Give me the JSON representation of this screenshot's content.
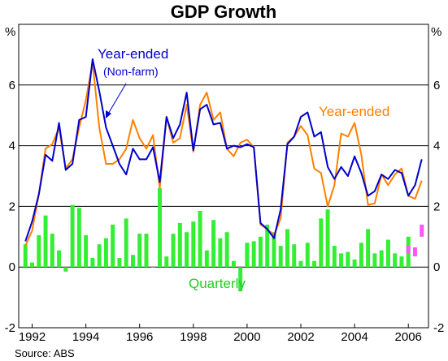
{
  "chart_data": {
    "type": "bar+line",
    "title": "GDP Growth",
    "source": "Source: ABS",
    "unit_left": "%",
    "unit_right": "%",
    "ylim": [
      -2,
      8
    ],
    "y_ticks": [
      "-2",
      "0",
      "2",
      "4",
      "6"
    ],
    "x_ticks": [
      "1992",
      "1994",
      "1996",
      "1998",
      "2000",
      "2002",
      "2004",
      "2006"
    ],
    "x_range": [
      1991.5,
      2006.75
    ],
    "grid": "horizontal",
    "annotations": {
      "blue_label": "Year-ended",
      "blue_sub": "(Non-farm)",
      "orange_label": "Year-ended",
      "green_label": "Quarterly"
    },
    "colors": {
      "quarterly": "#33ee33",
      "farm_contribution": "#ff55ff",
      "year_ended_nonfarm": "#0000cc",
      "year_ended": "#ff8000",
      "grid": "#000000"
    },
    "series": [
      {
        "name": "Quarterly",
        "type": "bar",
        "start": 1991.75,
        "step": 0.25,
        "values": [
          0.75,
          0.15,
          1.05,
          1.7,
          1.1,
          0.55,
          -0.15,
          2.05,
          1.95,
          1.05,
          0.3,
          0.75,
          0.95,
          1.4,
          0.3,
          1.6,
          0.4,
          1.1,
          1.1,
          0.0,
          2.6,
          0.35,
          1.1,
          1.45,
          1.15,
          1.5,
          1.85,
          0.55,
          1.55,
          0.95,
          1.15,
          0.2,
          -0.8,
          0.8,
          0.85,
          1.0,
          1.4,
          1.15,
          0.7,
          1.25,
          0.75,
          0.2,
          0.8,
          0.2,
          1.6,
          1.9,
          0.7,
          0.45,
          0.5,
          0.25,
          0.8,
          1.25,
          0.45,
          0.55,
          0.9,
          0.45,
          0.35,
          1.0
        ]
      },
      {
        "name": "Quarterly (farm)",
        "type": "bar-top",
        "start": 2006.0,
        "step": 0.25,
        "bases": [
          0.45,
          0.35,
          1.0
        ],
        "values": [
          0.7,
          0.65,
          1.4
        ]
      },
      {
        "name": "Year-ended (Non-farm)",
        "type": "line",
        "start": 1991.75,
        "step": 0.25,
        "values": [
          0.85,
          1.5,
          2.4,
          3.7,
          3.5,
          4.75,
          3.2,
          3.4,
          4.85,
          4.95,
          6.85,
          5.8,
          4.6,
          4.0,
          3.4,
          3.05,
          3.9,
          3.55,
          3.55,
          3.95,
          2.8,
          4.95,
          4.25,
          4.7,
          5.75,
          3.85,
          5.2,
          5.35,
          4.7,
          4.75,
          3.9,
          4.0,
          3.95,
          4.05,
          3.95,
          1.45,
          1.25,
          0.95,
          1.9,
          4.05,
          4.3,
          4.95,
          5.1,
          4.3,
          4.45,
          3.3,
          2.9,
          3.3,
          3.0,
          3.65,
          3.1,
          2.35,
          2.5,
          3.05,
          2.9,
          3.2,
          3.1,
          2.35,
          2.7,
          3.55
        ]
      },
      {
        "name": "Year-ended",
        "type": "line",
        "start": 1991.75,
        "step": 0.25,
        "values": [
          0.7,
          1.2,
          2.4,
          3.9,
          4.05,
          4.6,
          3.25,
          3.55,
          4.6,
          5.5,
          6.75,
          4.6,
          3.4,
          3.4,
          3.55,
          3.9,
          4.85,
          4.25,
          3.9,
          4.35,
          2.6,
          4.95,
          4.1,
          4.25,
          5.35,
          3.8,
          5.35,
          5.75,
          4.85,
          5.1,
          3.9,
          3.65,
          4.1,
          4.2,
          3.95,
          1.4,
          1.25,
          1.05,
          1.6,
          4.1,
          4.3,
          4.65,
          4.35,
          3.25,
          3.1,
          2.0,
          2.7,
          4.4,
          4.3,
          4.75,
          3.7,
          2.05,
          2.1,
          3.05,
          2.7,
          3.05,
          3.25,
          2.35,
          2.25,
          2.85
        ]
      }
    ]
  }
}
